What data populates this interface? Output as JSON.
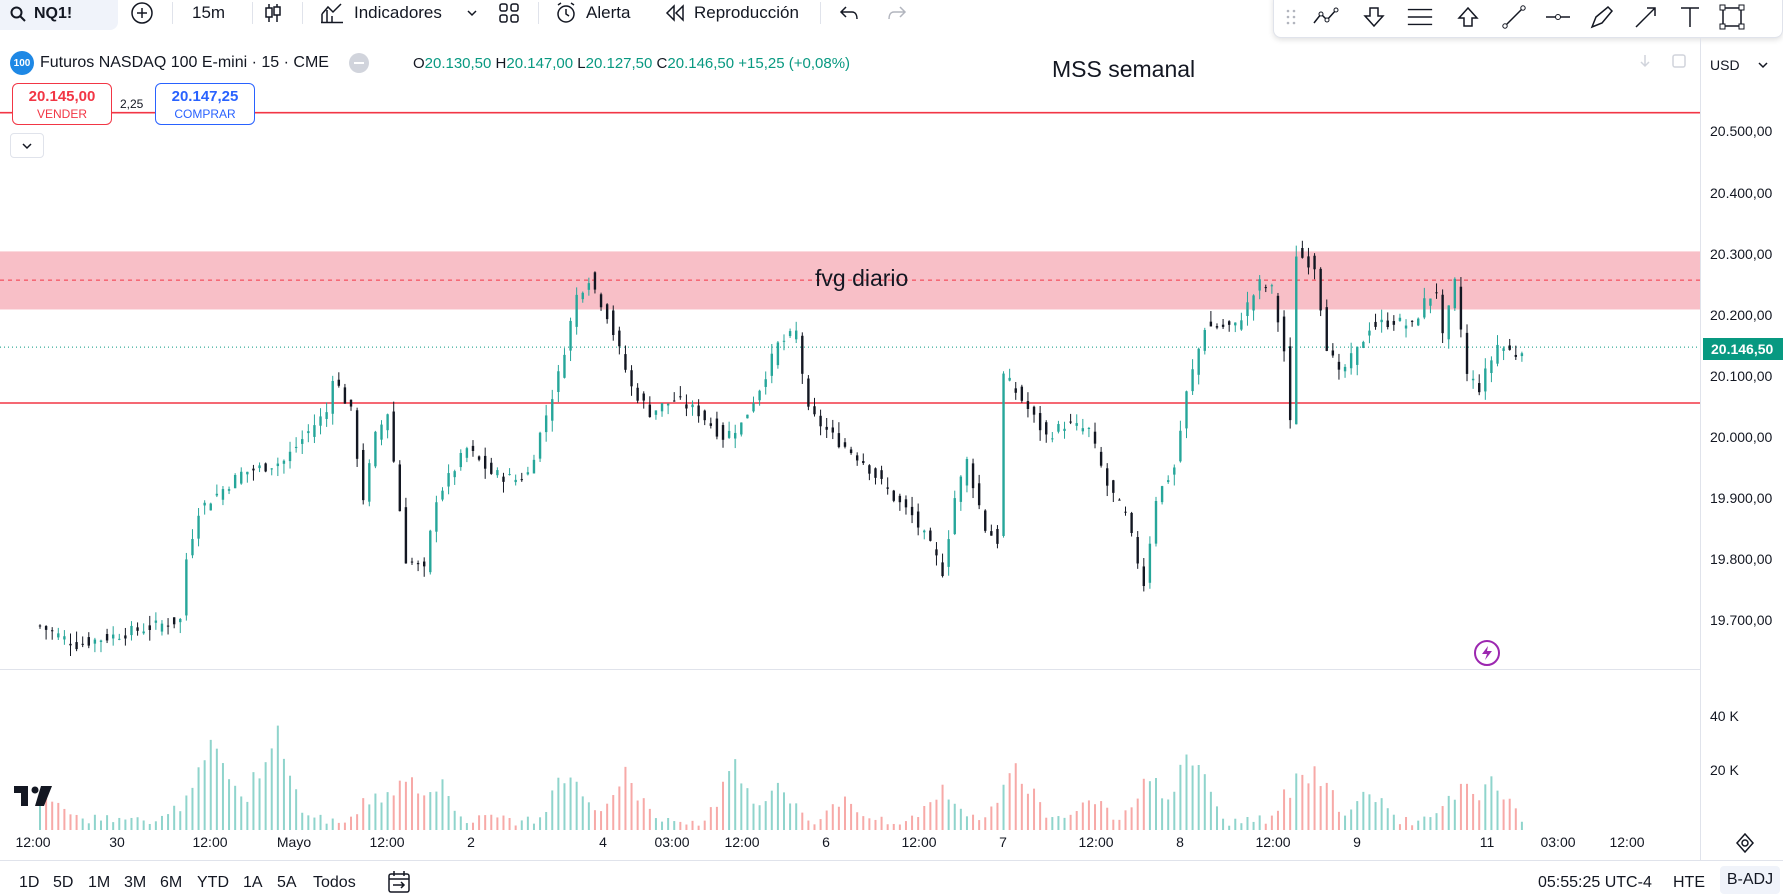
{
  "toolbar": {
    "symbol": "NQ1!",
    "interval": "15m",
    "indicators_label": "Indicadores",
    "alert_label": "Alerta",
    "replay_label": "Reproducción"
  },
  "legend": {
    "badge": "100",
    "title": "Futuros NASDAQ 100 E-mini · 15 · CME",
    "o_label": "O",
    "o": "20.130,50",
    "h_label": "H",
    "h": "20.147,00",
    "l_label": "L",
    "l": "20.127,50",
    "c_label": "C",
    "c": "20.146,50",
    "change": "+15,25 (+0,08%)"
  },
  "trade": {
    "sell_price": "20.145,00",
    "sell_label": "VENDER",
    "spread": "2,25",
    "buy_price": "20.147,25",
    "buy_label": "COMPRAR"
  },
  "annotations": {
    "mss": "MSS semanal",
    "fvg": "fvg diario"
  },
  "price_axis": {
    "currency": "USD",
    "labels": [
      "20.500,00",
      "20.400,00",
      "20.300,00",
      "20.200,00",
      "20.100,00",
      "20.000,00",
      "19.900,00",
      "19.800,00",
      "19.700,00"
    ],
    "current_price": "20.146,50"
  },
  "volume_axis": {
    "labels": [
      "40 K",
      "20 K"
    ]
  },
  "time_axis": {
    "labels": [
      "12:00",
      "30",
      "12:00",
      "Mayo",
      "12:00",
      "2",
      "4",
      "03:00",
      "12:00",
      "6",
      "12:00",
      "7",
      "12:00",
      "8",
      "12:00",
      "9",
      "11",
      "03:00",
      "12:00"
    ]
  },
  "bottom": {
    "ranges": [
      "1D",
      "5D",
      "1M",
      "3M",
      "6M",
      "YTD",
      "1A",
      "5A",
      "Todos"
    ],
    "clock": "05:55:25 UTC-4",
    "session": "HTE",
    "adjust": "B-ADJ"
  },
  "colors": {
    "up": "#26a69a",
    "down": "#131722",
    "zone": "#f7b4bd",
    "level": "#f23645",
    "current": "#089981"
  },
  "chart_data": {
    "type": "candlestick",
    "y_range": [
      19630,
      20560
    ],
    "zone_fvg": [
      20208,
      20303
    ],
    "zone_mid": 20256,
    "level_lines": [
      20530,
      20055
    ],
    "current_price": 20146.5,
    "ohlc_last": {
      "o": 20130.5,
      "h": 20147,
      "l": 20127.5,
      "c": 20146.5
    },
    "close_path": [
      [
        0,
        19690
      ],
      [
        6,
        19660
      ],
      [
        23,
        19700
      ],
      [
        24,
        19800
      ],
      [
        26,
        19880
      ],
      [
        33,
        19940
      ],
      [
        40,
        19960
      ],
      [
        45,
        20020
      ],
      [
        47,
        20040
      ],
      [
        48,
        20100
      ],
      [
        51,
        20040
      ],
      [
        53,
        19900
      ],
      [
        55,
        20000
      ],
      [
        57,
        20040
      ],
      [
        60,
        19800
      ],
      [
        63,
        19780
      ],
      [
        65,
        19900
      ],
      [
        70,
        19980
      ],
      [
        74,
        19940
      ],
      [
        78,
        19930
      ],
      [
        80,
        19940
      ],
      [
        85,
        20100
      ],
      [
        88,
        20230
      ],
      [
        90,
        20260
      ],
      [
        93,
        20200
      ],
      [
        97,
        20080
      ],
      [
        100,
        20040
      ],
      [
        104,
        20060
      ],
      [
        108,
        20040
      ],
      [
        112,
        20000
      ],
      [
        115,
        20020
      ],
      [
        118,
        20080
      ],
      [
        121,
        20150
      ],
      [
        124,
        20170
      ],
      [
        126,
        20040
      ],
      [
        130,
        20000
      ],
      [
        135,
        19960
      ],
      [
        140,
        19900
      ],
      [
        143,
        19870
      ],
      [
        146,
        19820
      ],
      [
        148,
        19780
      ],
      [
        150,
        19900
      ],
      [
        152,
        19960
      ],
      [
        155,
        19850
      ],
      [
        157,
        19830
      ],
      [
        158,
        20100
      ],
      [
        161,
        20060
      ],
      [
        165,
        20000
      ],
      [
        168,
        20020
      ],
      [
        172,
        20010
      ],
      [
        175,
        19920
      ],
      [
        178,
        19870
      ],
      [
        181,
        19760
      ],
      [
        183,
        19900
      ],
      [
        186,
        19950
      ],
      [
        188,
        20070
      ],
      [
        191,
        20180
      ],
      [
        196,
        20180
      ],
      [
        200,
        20250
      ],
      [
        202,
        20240
      ],
      [
        204,
        20140
      ],
      [
        205,
        20020
      ],
      [
        206,
        20300
      ],
      [
        209,
        20280
      ],
      [
        211,
        20150
      ],
      [
        213,
        20100
      ],
      [
        216,
        20140
      ],
      [
        218,
        20180
      ],
      [
        222,
        20190
      ],
      [
        225,
        20180
      ],
      [
        227,
        20220
      ],
      [
        229,
        20240
      ],
      [
        230,
        20160
      ],
      [
        232,
        20250
      ],
      [
        234,
        20100
      ],
      [
        236,
        20080
      ],
      [
        239,
        20150
      ],
      [
        242,
        20135
      ],
      [
        243,
        20146
      ]
    ],
    "volume_range": [
      0,
      50000
    ],
    "volume_spikes": [
      [
        0,
        12000
      ],
      [
        1,
        18000
      ],
      [
        22,
        10000
      ],
      [
        28,
        38000
      ],
      [
        30,
        26000
      ],
      [
        38,
        45000
      ],
      [
        55,
        18000
      ],
      [
        60,
        28000
      ],
      [
        65,
        22000
      ],
      [
        87,
        30000
      ],
      [
        96,
        26000
      ],
      [
        114,
        26000
      ],
      [
        121,
        22000
      ],
      [
        132,
        15000
      ],
      [
        148,
        20000
      ],
      [
        160,
        30000
      ],
      [
        172,
        16000
      ],
      [
        182,
        26000
      ],
      [
        189,
        35000
      ],
      [
        206,
        22000
      ],
      [
        209,
        30000
      ],
      [
        218,
        18000
      ],
      [
        233,
        20000
      ],
      [
        238,
        24000
      ]
    ]
  }
}
